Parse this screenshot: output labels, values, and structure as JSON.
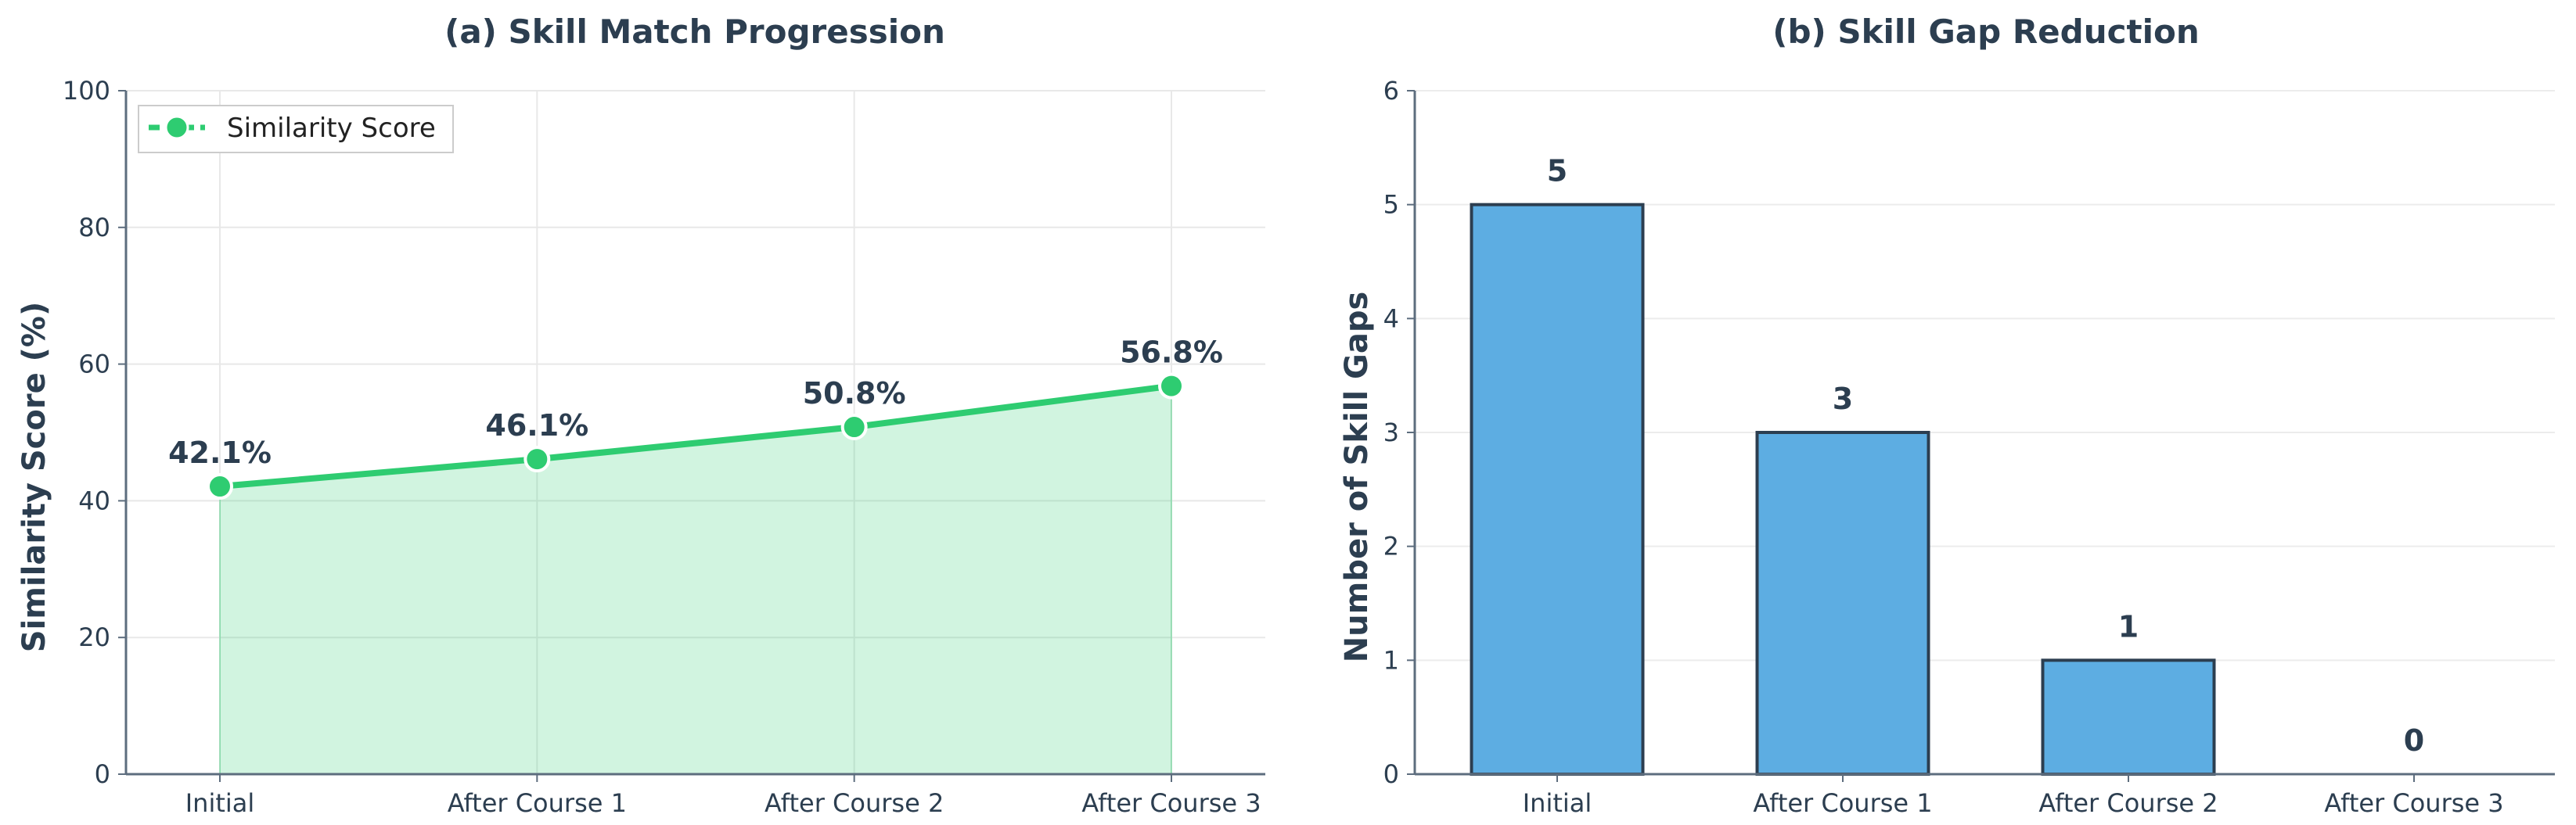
{
  "chart_data": [
    {
      "type": "line",
      "title": "(a) Skill Match Progression",
      "xlabel": "",
      "ylabel": "Similarity Score (%)",
      "categories": [
        "Initial",
        "After Course 1",
        "After Course 2",
        "After Course 3"
      ],
      "series": [
        {
          "name": "Similarity Score",
          "values": [
            42.1,
            46.1,
            50.8,
            56.8
          ],
          "labels": [
            "42.1%",
            "46.1%",
            "50.8%",
            "56.8%"
          ],
          "color": "#2ecc71"
        }
      ],
      "ylim": [
        0,
        100
      ],
      "yticks": [
        0,
        20,
        40,
        60,
        80,
        100
      ],
      "fill_under": true,
      "grid": true,
      "legend": "top-left"
    },
    {
      "type": "bar",
      "title": "(b) Skill Gap Reduction",
      "xlabel": "",
      "ylabel": "Number of Skill Gaps",
      "categories": [
        "Initial",
        "After Course 1",
        "After Course 2",
        "After Course 3"
      ],
      "values": [
        5,
        3,
        1,
        0
      ],
      "ylim": [
        0,
        6
      ],
      "yticks": [
        0,
        1,
        2,
        3,
        4,
        5,
        6
      ],
      "bar_color": "#5dade2",
      "edge_color": "#2c3e50",
      "grid": true
    }
  ]
}
